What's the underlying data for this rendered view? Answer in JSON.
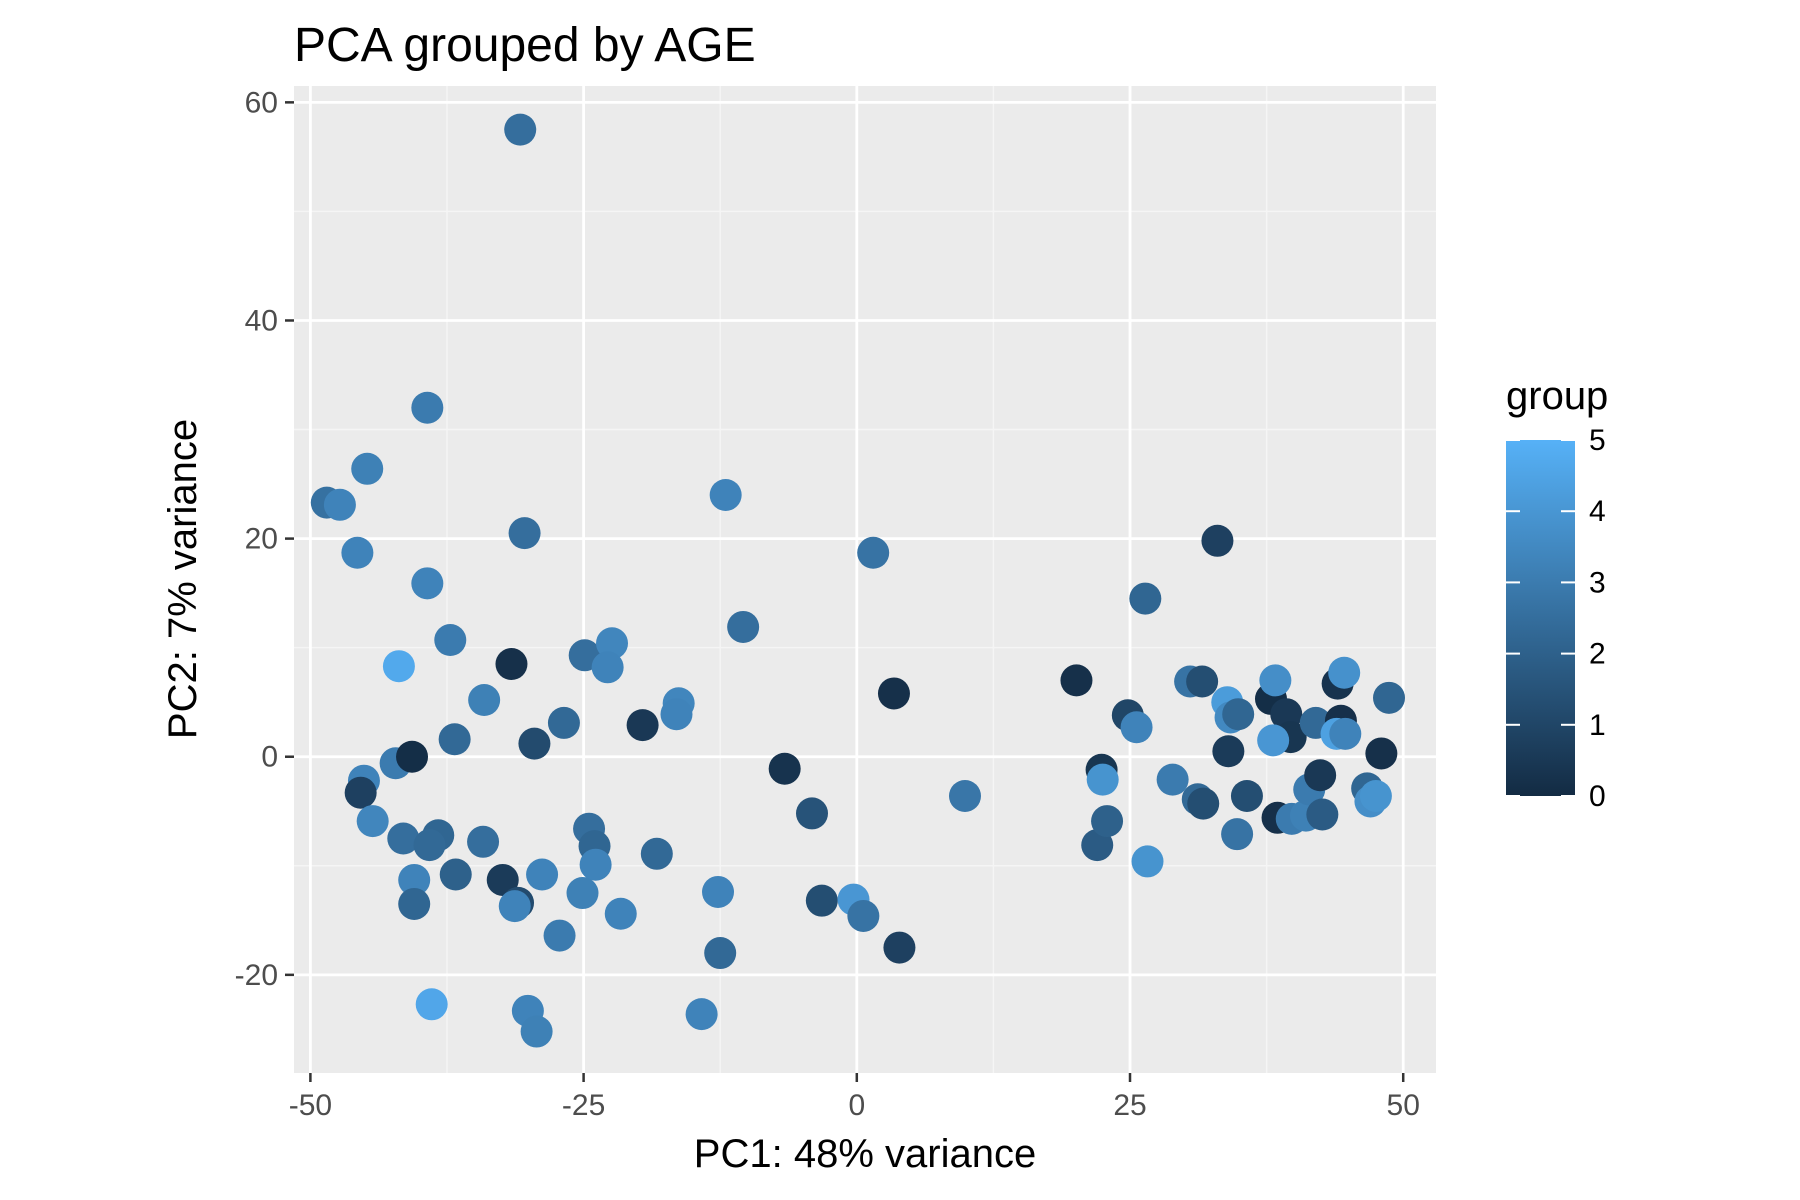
{
  "chart_data": {
    "type": "scatter",
    "title": "PCA grouped by AGE",
    "xlabel": "PC1: 48% variance",
    "ylabel": "PC2: 7% variance",
    "xlim": [
      -51.5,
      53
    ],
    "ylim": [
      -29,
      61.5
    ],
    "x_ticks": [
      -50,
      -25,
      0,
      25,
      50
    ],
    "y_ticks": [
      -20,
      0,
      20,
      40,
      60
    ],
    "x_tick_labels": [
      "-50",
      "-25",
      "0",
      "25",
      "50"
    ],
    "y_tick_labels": [
      "-20",
      "0",
      "20",
      "40",
      "60"
    ],
    "grid": true,
    "legend": {
      "title": "group",
      "placement": "right",
      "scale": "continuous",
      "range": [
        0,
        5
      ],
      "ticks": [
        "0",
        "1",
        "2",
        "3",
        "4",
        "5"
      ],
      "color_low": "#132b43",
      "color_high": "#56b1f7"
    },
    "colors": {
      "panel_background": "#ebebeb",
      "grid_major": "#ffffff",
      "grid_minor": "#f5f5f5"
    },
    "points": [
      {
        "x": -30.8,
        "y": 57.5,
        "group": 2.5
      },
      {
        "x": -39.3,
        "y": 32.0,
        "group": 3.0
      },
      {
        "x": -44.8,
        "y": 26.4,
        "group": 3.2
      },
      {
        "x": -48.5,
        "y": 23.3,
        "group": 2.6
      },
      {
        "x": -47.3,
        "y": 23.1,
        "group": 3.3
      },
      {
        "x": -45.7,
        "y": 18.7,
        "group": 3.3
      },
      {
        "x": -30.4,
        "y": 20.5,
        "group": 2.5
      },
      {
        "x": -12.0,
        "y": 24.0,
        "group": 3.3
      },
      {
        "x": 1.5,
        "y": 18.7,
        "group": 2.7
      },
      {
        "x": -39.3,
        "y": 15.9,
        "group": 3.3
      },
      {
        "x": -37.2,
        "y": 10.7,
        "group": 3.0
      },
      {
        "x": -10.4,
        "y": 11.9,
        "group": 2.5
      },
      {
        "x": -41.9,
        "y": 8.3,
        "group": 4.7
      },
      {
        "x": -31.6,
        "y": 8.5,
        "group": 0.2
      },
      {
        "x": -24.9,
        "y": 9.3,
        "group": 2.5
      },
      {
        "x": -22.4,
        "y": 10.4,
        "group": 3.4
      },
      {
        "x": -22.8,
        "y": 8.2,
        "group": 3.3
      },
      {
        "x": -16.3,
        "y": 4.9,
        "group": 3.4
      },
      {
        "x": -16.5,
        "y": 3.9,
        "group": 3.3
      },
      {
        "x": -34.1,
        "y": 5.2,
        "group": 3.2
      },
      {
        "x": -19.6,
        "y": 2.9,
        "group": 0.5
      },
      {
        "x": -26.8,
        "y": 3.1,
        "group": 2.3
      },
      {
        "x": -29.5,
        "y": 1.2,
        "group": 1.2
      },
      {
        "x": -36.8,
        "y": 1.6,
        "group": 2.3
      },
      {
        "x": -42.2,
        "y": -0.6,
        "group": 3.0
      },
      {
        "x": -40.7,
        "y": 0.0,
        "group": 0.1
      },
      {
        "x": -45.1,
        "y": -2.2,
        "group": 3.3
      },
      {
        "x": -45.4,
        "y": -3.3,
        "group": 0.8
      },
      {
        "x": 3.4,
        "y": 5.8,
        "group": 0.2
      },
      {
        "x": -6.6,
        "y": -1.1,
        "group": 0.3
      },
      {
        "x": 9.9,
        "y": -3.6,
        "group": 2.8
      },
      {
        "x": -4.1,
        "y": -5.2,
        "group": 1.5
      },
      {
        "x": -44.3,
        "y": -5.9,
        "group": 3.4
      },
      {
        "x": -38.3,
        "y": -7.2,
        "group": 2.2
      },
      {
        "x": -41.5,
        "y": -7.5,
        "group": 2.5
      },
      {
        "x": -39.1,
        "y": -8.1,
        "group": 2.3
      },
      {
        "x": -34.2,
        "y": -7.8,
        "group": 2.5
      },
      {
        "x": -24.5,
        "y": -6.6,
        "group": 2.5
      },
      {
        "x": -24.0,
        "y": -8.2,
        "group": 2.2
      },
      {
        "x": -23.9,
        "y": -9.9,
        "group": 3.3
      },
      {
        "x": -18.3,
        "y": -8.9,
        "group": 2.3
      },
      {
        "x": -40.5,
        "y": -11.3,
        "group": 3.3
      },
      {
        "x": -36.7,
        "y": -10.8,
        "group": 2.0
      },
      {
        "x": -32.4,
        "y": -11.3,
        "group": 0.6
      },
      {
        "x": -28.8,
        "y": -10.8,
        "group": 3.3
      },
      {
        "x": -25.1,
        "y": -12.5,
        "group": 3.2
      },
      {
        "x": -40.5,
        "y": -13.5,
        "group": 2.2
      },
      {
        "x": -31.0,
        "y": -13.4,
        "group": 1.2
      },
      {
        "x": -31.3,
        "y": -13.7,
        "group": 3.3
      },
      {
        "x": -12.7,
        "y": -12.4,
        "group": 3.3
      },
      {
        "x": -3.2,
        "y": -13.2,
        "group": 1.3
      },
      {
        "x": -0.3,
        "y": -13.1,
        "group": 4.0
      },
      {
        "x": 0.6,
        "y": -14.6,
        "group": 2.7
      },
      {
        "x": -21.6,
        "y": -14.4,
        "group": 3.3
      },
      {
        "x": -27.2,
        "y": -16.4,
        "group": 3.0
      },
      {
        "x": 3.9,
        "y": -17.5,
        "group": 0.8
      },
      {
        "x": -12.5,
        "y": -18.0,
        "group": 2.3
      },
      {
        "x": -38.9,
        "y": -22.7,
        "group": 4.6
      },
      {
        "x": -30.1,
        "y": -23.3,
        "group": 3.3
      },
      {
        "x": -14.2,
        "y": -23.6,
        "group": 3.3
      },
      {
        "x": -29.3,
        "y": -25.2,
        "group": 3.2
      },
      {
        "x": 20.1,
        "y": 7.0,
        "group": 0.2
      },
      {
        "x": 22.4,
        "y": -1.2,
        "group": 0.4
      },
      {
        "x": 22.5,
        "y": -2.1,
        "group": 3.9
      },
      {
        "x": 22.0,
        "y": -8.1,
        "group": 1.8
      },
      {
        "x": 22.9,
        "y": -5.9,
        "group": 2.0
      },
      {
        "x": 24.8,
        "y": 3.8,
        "group": 1.0
      },
      {
        "x": 25.6,
        "y": 2.7,
        "group": 3.3
      },
      {
        "x": 26.4,
        "y": 14.5,
        "group": 2.2
      },
      {
        "x": 26.6,
        "y": -9.6,
        "group": 3.9
      },
      {
        "x": 28.9,
        "y": -2.1,
        "group": 3.0
      },
      {
        "x": 30.5,
        "y": 6.9,
        "group": 2.7
      },
      {
        "x": 31.6,
        "y": 6.9,
        "group": 1.3
      },
      {
        "x": 31.2,
        "y": -3.9,
        "group": 2.3
      },
      {
        "x": 31.7,
        "y": -4.3,
        "group": 1.3
      },
      {
        "x": 33.0,
        "y": 19.8,
        "group": 0.8
      },
      {
        "x": 33.9,
        "y": 5.0,
        "group": 4.2
      },
      {
        "x": 34.2,
        "y": 3.6,
        "group": 3.5
      },
      {
        "x": 34.9,
        "y": 3.9,
        "group": 2.2
      },
      {
        "x": 34.0,
        "y": 0.5,
        "group": 0.6
      },
      {
        "x": 34.8,
        "y": -7.1,
        "group": 2.7
      },
      {
        "x": 35.7,
        "y": -3.6,
        "group": 1.3
      },
      {
        "x": 37.9,
        "y": 5.3,
        "group": 0.1
      },
      {
        "x": 38.3,
        "y": 7.0,
        "group": 3.7
      },
      {
        "x": 39.3,
        "y": 3.9,
        "group": 0.5
      },
      {
        "x": 39.7,
        "y": 1.8,
        "group": 0.4
      },
      {
        "x": 38.1,
        "y": 1.5,
        "group": 4.0
      },
      {
        "x": 38.5,
        "y": -5.6,
        "group": 0.2
      },
      {
        "x": 39.8,
        "y": -5.7,
        "group": 3.0
      },
      {
        "x": 41.1,
        "y": -5.4,
        "group": 3.2
      },
      {
        "x": 41.4,
        "y": -3.0,
        "group": 3.0
      },
      {
        "x": 42.0,
        "y": 3.1,
        "group": 2.3
      },
      {
        "x": 42.4,
        "y": -1.7,
        "group": 0.5
      },
      {
        "x": 42.6,
        "y": -5.3,
        "group": 1.8
      },
      {
        "x": 44.0,
        "y": 6.7,
        "group": 0.3
      },
      {
        "x": 44.6,
        "y": 7.7,
        "group": 3.8
      },
      {
        "x": 44.3,
        "y": 3.3,
        "group": 0.2
      },
      {
        "x": 43.9,
        "y": 2.1,
        "group": 4.4
      },
      {
        "x": 44.7,
        "y": 2.1,
        "group": 3.3
      },
      {
        "x": 46.7,
        "y": -2.9,
        "group": 2.2
      },
      {
        "x": 47.0,
        "y": -4.1,
        "group": 3.7
      },
      {
        "x": 47.5,
        "y": -3.6,
        "group": 3.9
      },
      {
        "x": 48.0,
        "y": 0.3,
        "group": 0.2
      },
      {
        "x": 48.7,
        "y": 5.4,
        "group": 2.2
      }
    ]
  }
}
